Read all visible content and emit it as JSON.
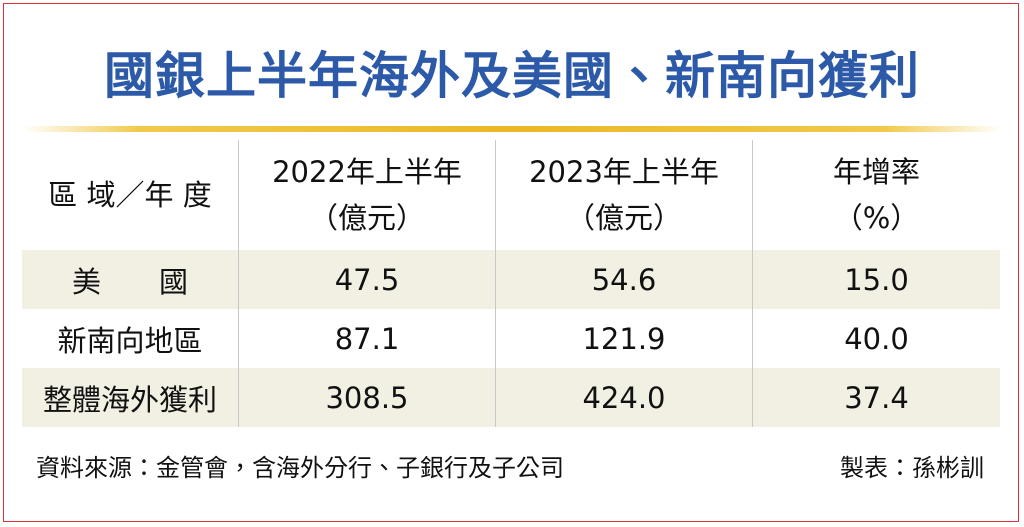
{
  "header": {
    "title": "國銀上半年海外及美國、新南向獲利"
  },
  "table": {
    "columns": [
      [
        "區 域／年 度"
      ],
      [
        "2022年上半年",
        "（億元）"
      ],
      [
        "2023年上半年",
        "（億元）"
      ],
      [
        "年增率",
        "（%）"
      ]
    ],
    "rows": [
      [
        "美　　國",
        "47.5",
        "54.6",
        "15.0"
      ],
      [
        "新南向地區",
        "87.1",
        "121.9",
        "40.0"
      ],
      [
        "整體海外獲利",
        "308.5",
        "424.0",
        "37.4"
      ]
    ]
  },
  "footer": {
    "source": "資料來源：金管會，含海外分行、子銀行及子公司",
    "author": "製表：孫彬訓"
  }
}
